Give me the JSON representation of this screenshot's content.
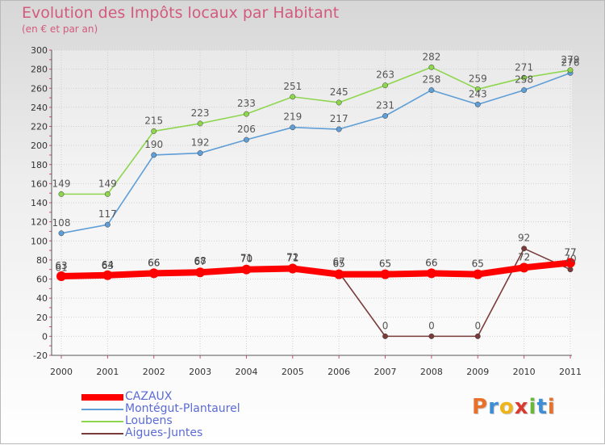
{
  "chart_data": {
    "type": "line",
    "title": "Evolution des Impôts locaux par Habitant",
    "subtitle": "(en € et par an)",
    "x": [
      2000,
      2001,
      2002,
      2003,
      2004,
      2005,
      2006,
      2007,
      2008,
      2009,
      2010,
      2011
    ],
    "x_tick_labels": [
      "2000",
      "2001",
      "2002",
      "2003",
      "2004",
      "2005",
      "2006",
      "2007",
      "2008",
      "2009",
      "2010",
      "2011"
    ],
    "ylim": [
      -20,
      300
    ],
    "y_ticks": [
      -20,
      0,
      20,
      40,
      60,
      80,
      100,
      120,
      140,
      160,
      180,
      200,
      220,
      240,
      260,
      280,
      300
    ],
    "grid": true,
    "series": [
      {
        "name": "CAZAUX",
        "color": "#ff0000",
        "values": [
          63,
          64,
          66,
          67,
          70,
          71,
          65,
          65,
          66,
          65,
          72,
          77
        ]
      },
      {
        "name": "Montégut-Plantaurel",
        "color": "#5f9ed6",
        "values": [
          108,
          117,
          190,
          192,
          206,
          219,
          217,
          231,
          258,
          243,
          258,
          276
        ]
      },
      {
        "name": "Loubens",
        "color": "#8fd64f",
        "values": [
          149,
          149,
          215,
          223,
          233,
          251,
          245,
          263,
          282,
          259,
          271,
          279
        ]
      },
      {
        "name": "Aigues-Juntes",
        "color": "#7a3b3b",
        "values": [
          61,
          63,
          66,
          68,
          71,
          72,
          67,
          0,
          0,
          0,
          92,
          70
        ]
      }
    ]
  },
  "legend": {
    "items": [
      {
        "label": "CAZAUX",
        "color": "#ff0000"
      },
      {
        "label": "Montégut-Plantaurel",
        "color": "#5f9ed6"
      },
      {
        "label": "Loubens",
        "color": "#8fd64f"
      },
      {
        "label": "Aigues-Juntes",
        "color": "#7a3b3b"
      }
    ]
  },
  "brand": {
    "letters": [
      "P",
      "r",
      "o",
      "x",
      "i",
      "t",
      "i"
    ],
    "colors": [
      "#e8702a",
      "#3d8ed6",
      "#f0b41b",
      "#d93a2f",
      "#69b83a",
      "#3d8ed6",
      "#e8702a"
    ]
  }
}
